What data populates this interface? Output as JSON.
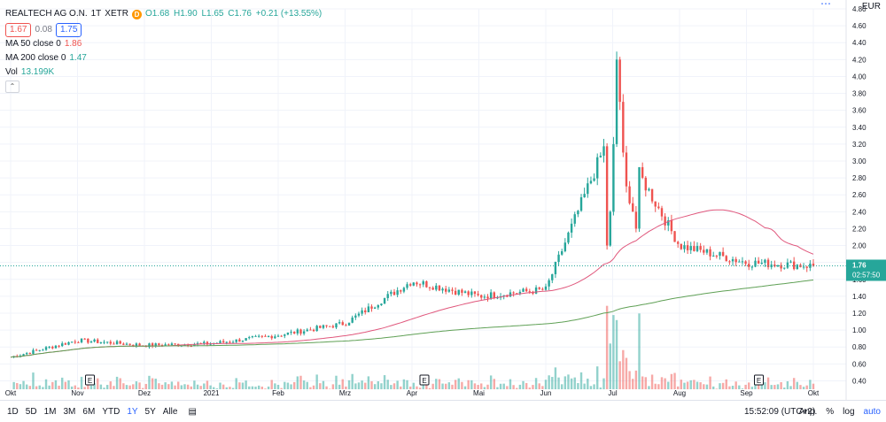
{
  "legend": {
    "symbol": "REALTECH AG O.N.",
    "interval": "1T",
    "exchange": "XETR",
    "badge": "D",
    "open": "O1.68",
    "high": "H1.90",
    "low": "L1.65",
    "close": "C1.76",
    "change": "+0.21 (+13.55%)",
    "bid": "1.67",
    "spread": "0.08",
    "ask": "1.75",
    "ma50_label": "MA 50 close 0",
    "ma50_value": "1.86",
    "ma200_label": "MA 200 close 0",
    "ma200_value": "1.47",
    "vol_label": "Vol",
    "vol_value": "13.199K"
  },
  "currency": "EUR",
  "last_price_label": "1.76",
  "countdown_label": "02:57:50",
  "toolbar": {
    "ranges": [
      "1D",
      "5D",
      "1M",
      "3M",
      "6M",
      "YTD",
      "1Y",
      "5Y",
      "Alle"
    ],
    "active_range": "1Y",
    "time": "15:52:09 (UTC+2)",
    "adj": "Anp.",
    "percent": "%",
    "log": "log",
    "auto": "auto"
  },
  "colors": {
    "up": "#26a69a",
    "down": "#ef5350",
    "ma50": "#e0577c",
    "ma200": "#5fa055",
    "grid": "#f0f3fa",
    "last": "#2962ff"
  },
  "chart_data": {
    "type": "candlestick",
    "y_axis": {
      "min": 0.3,
      "max": 4.8,
      "ticks": [
        "4.80",
        "4.60",
        "4.40",
        "4.20",
        "4.00",
        "3.80",
        "3.60",
        "3.40",
        "3.20",
        "3.00",
        "2.80",
        "2.60",
        "2.40",
        "2.20",
        "2.00",
        "1.80",
        "1.60",
        "1.40",
        "1.20",
        "1.00",
        "0.80",
        "0.60",
        "0.40"
      ]
    },
    "x_axis": {
      "labels": [
        "Okt",
        "Nov",
        "Dez",
        "2021",
        "Feb",
        "Mrz",
        "Apr",
        "Mai",
        "Jun",
        "Jul",
        "Aug",
        "Sep",
        "Okt"
      ]
    },
    "earnings_markers": [
      {
        "month": "Nov",
        "label": "E"
      },
      {
        "month": "Apr",
        "label": "E"
      },
      {
        "month": "Sep",
        "label": "E"
      }
    ],
    "close_series": [
      {
        "m": "Okt",
        "c": 0.68
      },
      {
        "m": "Nov",
        "c": 0.88
      },
      {
        "m": "Dez",
        "c": 0.82
      },
      {
        "m": "2021",
        "c": 0.84
      },
      {
        "m": "Feb",
        "c": 0.94
      },
      {
        "m": "Mrz",
        "c": 1.08
      },
      {
        "m": "Apr",
        "c": 1.58
      },
      {
        "m": "Mai",
        "c": 1.4
      },
      {
        "m": "Jun",
        "c": 1.48
      },
      {
        "m": "Jul",
        "c": 3.4
      },
      {
        "m": "Aug",
        "c": 2.0
      },
      {
        "m": "Sep",
        "c": 1.8
      },
      {
        "m": "Okt",
        "c": 1.76
      }
    ],
    "ma50_end": 1.86,
    "ma200_end": 1.47,
    "last_close": 1.76
  }
}
